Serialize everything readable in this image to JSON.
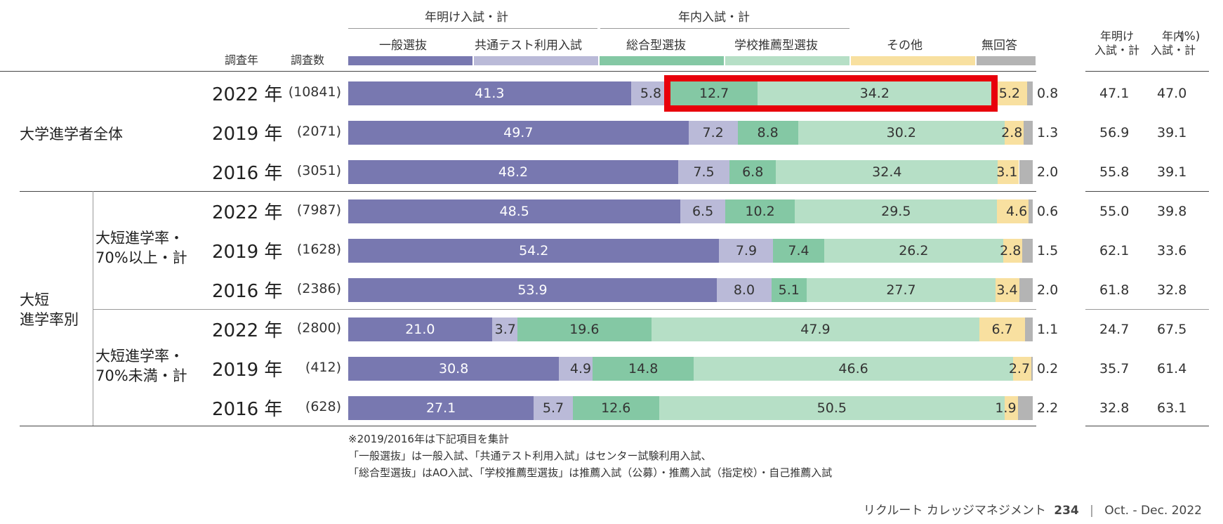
{
  "chart_data": {
    "type": "bar",
    "stacked": true,
    "orientation": "horizontal",
    "unit_label": "(%)",
    "group_headers": {
      "ake": "年明け入試・計",
      "nennai": "年内入試・計"
    },
    "column_headers": {
      "year": "調査年",
      "count": "調査数",
      "ake_total": "年明け\n入試・計",
      "nennai_total": "年内\n入試・計"
    },
    "series": [
      {
        "name": "一般選抜",
        "color": "#7878b0"
      },
      {
        "name": "共通テスト利用入試",
        "color": "#babad8"
      },
      {
        "name": "総合型選抜",
        "color": "#84c8a4"
      },
      {
        "name": "学校推薦型選抜",
        "color": "#b6dfc6"
      },
      {
        "name": "その他",
        "color": "#f8e0a0"
      },
      {
        "name": "無回答",
        "color": "#b4b4b4"
      }
    ],
    "groups": [
      {
        "label": "大学進学者全体",
        "sub_label": ""
      },
      {
        "label": "大短\n進学率別",
        "sub_label": "大短進学率・\n70%以上・計"
      },
      {
        "label": "",
        "sub_label": "大短進学率・\n70%未満・計"
      }
    ],
    "rows": [
      {
        "year": "2022 年",
        "count": "(10841)",
        "values": [
          41.3,
          5.8,
          12.7,
          34.2,
          5.2,
          0.8
        ],
        "labels": [
          "41.3",
          "5.8",
          "12.7",
          "34.2",
          "5.2",
          "0.8"
        ],
        "ake_total": "47.1",
        "nennai_total": "47.0",
        "highlight": true
      },
      {
        "year": "2019 年",
        "count": "(2071)",
        "values": [
          49.7,
          7.2,
          8.8,
          30.2,
          2.8,
          1.3
        ],
        "labels": [
          "49.7",
          "7.2",
          "8.8",
          "30.2",
          "2.8",
          "1.3"
        ],
        "ake_total": "56.9",
        "nennai_total": "39.1"
      },
      {
        "year": "2016 年",
        "count": "(3051)",
        "values": [
          48.2,
          7.5,
          6.8,
          32.4,
          3.1,
          2.0
        ],
        "labels": [
          "48.2",
          "7.5",
          "6.8",
          "32.4",
          "3.1",
          "2.0"
        ],
        "ake_total": "55.8",
        "nennai_total": "39.1"
      },
      {
        "year": "2022 年",
        "count": "(7987)",
        "values": [
          48.5,
          6.5,
          10.2,
          29.5,
          4.6,
          0.6
        ],
        "labels": [
          "48.5",
          "6.5",
          "10.2",
          "29.5",
          "4.6",
          "0.6"
        ],
        "ake_total": "55.0",
        "nennai_total": "39.8"
      },
      {
        "year": "2019 年",
        "count": "(1628)",
        "values": [
          54.2,
          7.9,
          7.4,
          26.2,
          2.8,
          1.5
        ],
        "labels": [
          "54.2",
          "7.9",
          "7.4",
          "26.2",
          "2.8",
          "1.5"
        ],
        "ake_total": "62.1",
        "nennai_total": "33.6"
      },
      {
        "year": "2016 年",
        "count": "(2386)",
        "values": [
          53.9,
          8.0,
          5.1,
          27.7,
          3.4,
          2.0
        ],
        "labels": [
          "53.9",
          "8.0",
          "5.1",
          "27.7",
          "3.4",
          "2.0"
        ],
        "ake_total": "61.8",
        "nennai_total": "32.8"
      },
      {
        "year": "2022 年",
        "count": "(2800)",
        "values": [
          21.0,
          3.7,
          19.6,
          47.9,
          6.7,
          1.1
        ],
        "labels": [
          "21.0",
          "3.7",
          "19.6",
          "47.9",
          "6.7",
          "1.1"
        ],
        "ake_total": "24.7",
        "nennai_total": "67.5"
      },
      {
        "year": "2019 年",
        "count": "(412)",
        "values": [
          30.8,
          4.9,
          14.8,
          46.6,
          2.7,
          0.2
        ],
        "labels": [
          "30.8",
          "4.9",
          "14.8",
          "46.6",
          "2.7",
          "0.2"
        ],
        "ake_total": "35.7",
        "nennai_total": "61.4"
      },
      {
        "year": "2016 年",
        "count": "(628)",
        "values": [
          27.1,
          5.7,
          12.6,
          50.5,
          1.9,
          2.2
        ],
        "labels": [
          "27.1",
          "5.7",
          "12.6",
          "50.5",
          "1.9",
          "2.2"
        ],
        "ake_total": "32.8",
        "nennai_total": "63.1"
      }
    ],
    "notes": [
      "※2019/2016年は下記項目を集計",
      "「一般選抜」は一般入試、「共通テスト利用入試」はセンター試験利用入試、",
      "「総合型選抜」はAO入試、「学校推薦型選抜」は推薦入試（公募）・推薦入試（指定校）・自己推薦入試"
    ]
  },
  "footer": {
    "publication": "リクルート カレッジマネジメント",
    "issue": "234",
    "separator": "|",
    "date": "Oct. - Dec. 2022"
  },
  "colors": {
    "highlight_box": "#e8000b"
  }
}
